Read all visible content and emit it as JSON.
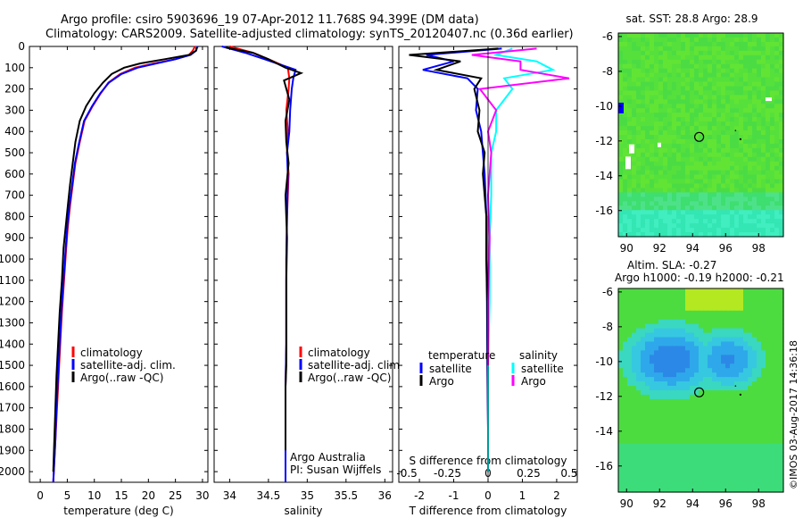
{
  "header": {
    "line1": "Argo profile: csiro 5903696_19 07-Apr-2012 11.768S 94.399E (DM data)",
    "line2": "Climatology: CARS2009. Satellite-adjusted climatology: synTS_20120407.nc (0.36d earlier)"
  },
  "colors": {
    "climatology": "#ff0000",
    "satellite": "#0000ff",
    "argo": "#000000",
    "sal_satellite": "#00ffff",
    "sal_argo": "#ff00ff"
  },
  "chart_data": [
    {
      "type": "line",
      "name": "temperature-profile",
      "xlabel": "temperature (deg C)",
      "ylabel": "",
      "xlim": [
        -2,
        31
      ],
      "ylim": [
        0,
        2050
      ],
      "xticks": [
        "0",
        "5",
        "10",
        "15",
        "20",
        "25",
        "30"
      ],
      "xtick_values": [
        0,
        5,
        10,
        15,
        20,
        25,
        30
      ],
      "yticks": [
        "0",
        "100",
        "200",
        "300",
        "400",
        "500",
        "600",
        "700",
        "800",
        "900",
        "1000",
        "1100",
        "1200",
        "1300",
        "1400",
        "1500",
        "1600",
        "1700",
        "1800",
        "1900",
        "2000"
      ],
      "legend": [
        "climatology",
        "satellite-adj. clim.",
        "Argo(..raw -QC)"
      ],
      "series": [
        {
          "name": "climatology",
          "x": [
            28.6,
            28.2,
            27.5,
            25,
            21,
            17.5,
            14.8,
            12.6,
            11.2,
            9.7,
            8.2,
            7.3,
            6.5,
            6.0,
            5.5,
            5.1,
            4.8,
            4.4,
            4.0,
            3.7,
            3.4,
            3.1,
            2.8,
            2.6,
            2.4
          ],
          "depth": [
            0,
            20,
            40,
            60,
            80,
            100,
            130,
            170,
            220,
            280,
            350,
            450,
            550,
            650,
            750,
            850,
            950,
            1100,
            1250,
            1400,
            1550,
            1700,
            1850,
            1950,
            2050
          ]
        },
        {
          "name": "satellite",
          "x": [
            29.1,
            28.8,
            27.8,
            25,
            21.5,
            18,
            15,
            12.7,
            11.1,
            9.6,
            8.1,
            7.2,
            6.4,
            5.9,
            5.4,
            5.0,
            4.7,
            4.3,
            3.9,
            3.6,
            3.3,
            3.0,
            2.8,
            2.6,
            2.4
          ],
          "depth": [
            0,
            20,
            40,
            60,
            80,
            100,
            130,
            170,
            220,
            280,
            350,
            450,
            550,
            650,
            750,
            850,
            950,
            1100,
            1250,
            1400,
            1550,
            1700,
            1850,
            1950,
            2050
          ]
        },
        {
          "name": "Argo",
          "x": [
            28.9,
            28.8,
            27.5,
            23,
            18.5,
            15.5,
            13.2,
            11.6,
            10.0,
            8.5,
            7.3,
            6.5,
            6.0,
            5.5,
            5.1,
            4.7,
            4.3,
            4.0,
            3.6,
            3.3,
            3.0,
            2.8,
            2.6,
            2.4
          ],
          "depth": [
            5,
            20,
            40,
            60,
            80,
            100,
            130,
            170,
            220,
            280,
            350,
            450,
            550,
            650,
            750,
            850,
            950,
            1100,
            1250,
            1400,
            1550,
            1700,
            1850,
            2000
          ]
        }
      ]
    },
    {
      "type": "line",
      "name": "salinity-profile",
      "xlabel": "salinity",
      "xlim": [
        33.8,
        36.1
      ],
      "ylim": [
        0,
        2050
      ],
      "xticks": [
        "34",
        "34.5",
        "35",
        "35.5",
        "36"
      ],
      "xtick_values": [
        34,
        34.5,
        35,
        35.5,
        36
      ],
      "legend": [
        "climatology",
        "satellite-adj. clim.",
        "Argo(..raw -QC)"
      ],
      "credit": [
        "Argo Australia",
        "PI: Susan Wijffels"
      ],
      "series": [
        {
          "name": "climatology",
          "x": [
            34.0,
            34.3,
            34.5,
            34.75,
            34.77,
            34.76,
            34.73,
            34.75,
            34.74,
            34.76,
            34.74,
            34.73,
            34.73,
            34.73,
            34.72,
            34.72,
            34.72,
            34.72,
            34.72,
            34.72
          ],
          "depth": [
            0,
            30,
            60,
            100,
            150,
            200,
            300,
            400,
            500,
            600,
            800,
            1000,
            1200,
            1400,
            1600,
            1700,
            1800,
            1900,
            2000,
            2050
          ]
        },
        {
          "name": "satellite",
          "x": [
            33.9,
            34.2,
            34.45,
            34.85,
            34.82,
            34.8,
            34.78,
            34.77,
            34.74,
            34.75,
            34.74,
            34.73,
            34.73,
            34.73,
            34.72,
            34.72,
            34.72,
            34.72,
            34.72,
            34.72
          ],
          "depth": [
            0,
            30,
            60,
            110,
            150,
            200,
            300,
            400,
            500,
            600,
            800,
            1000,
            1200,
            1400,
            1600,
            1700,
            1800,
            1900,
            2000,
            2050
          ]
        },
        {
          "name": "Argo",
          "x": [
            33.95,
            34.3,
            34.5,
            34.72,
            34.92,
            34.7,
            34.77,
            34.72,
            34.73,
            34.76,
            34.72,
            34.74,
            34.73,
            34.73,
            34.73,
            34.72,
            34.72,
            34.72,
            34.72
          ],
          "depth": [
            5,
            30,
            60,
            100,
            125,
            160,
            250,
            350,
            450,
            550,
            700,
            900,
            1100,
            1300,
            1500,
            1600,
            1700,
            1800,
            1900
          ]
        }
      ]
    },
    {
      "type": "line",
      "name": "difference-from-climatology",
      "xlabel": "T difference from climatology",
      "x2label": "S difference from climatology",
      "xlim": [
        -2.6,
        2.6
      ],
      "ylim": [
        0,
        2050
      ],
      "xticks": [
        "-2",
        "-1",
        "0",
        "1",
        "2"
      ],
      "xtick_values": [
        -2,
        -1,
        0,
        1,
        2
      ],
      "x2ticks": [
        "-0.5",
        "-0.25",
        "0",
        "0.25",
        "0.5"
      ],
      "legend_headers": [
        "temperature",
        "salinity"
      ],
      "legend": [
        "satellite",
        "Argo",
        "satellite",
        "Argo"
      ],
      "series": [
        {
          "name": "T satellite",
          "x": [
            0.4,
            -1.8,
            -1.0,
            -1.9,
            -0.6,
            -0.3,
            -0.35,
            -0.2,
            -0.15,
            -0.1,
            -0.05,
            -0.05,
            -0.03,
            -0.02,
            0.0,
            0.0
          ],
          "depth": [
            10,
            40,
            70,
            110,
            150,
            200,
            300,
            400,
            500,
            600,
            800,
            1000,
            1200,
            1500,
            1800,
            2000
          ]
        },
        {
          "name": "T Argo",
          "x": [
            0.3,
            -2.3,
            -0.8,
            -1.5,
            -0.2,
            -0.4,
            -0.25,
            -0.3,
            -0.1,
            -0.15,
            -0.05,
            -0.05,
            -0.02,
            -0.01,
            0.0,
            0.0
          ],
          "depth": [
            10,
            40,
            70,
            110,
            150,
            200,
            300,
            400,
            500,
            600,
            800,
            1000,
            1200,
            1500,
            1800,
            2000
          ]
        },
        {
          "name": "S satellite",
          "x": [
            0.15,
            0.05,
            0.3,
            0.4,
            0.1,
            0.15,
            0.05,
            0.05,
            0.02,
            0.02,
            0.01,
            0.01,
            0.0,
            0.0
          ],
          "depth": [
            10,
            40,
            70,
            110,
            150,
            200,
            300,
            400,
            500,
            700,
            900,
            1200,
            1500,
            2000
          ]
        },
        {
          "name": "S Argo",
          "x": [
            0.3,
            -0.1,
            0.2,
            0.2,
            0.5,
            -0.05,
            0.05,
            0.0,
            0.02,
            0.0,
            0.01,
            0.0,
            0.0
          ],
          "depth": [
            10,
            40,
            70,
            110,
            150,
            200,
            300,
            400,
            500,
            700,
            900,
            1200,
            1500
          ]
        }
      ]
    },
    {
      "type": "heatmap",
      "name": "sst-map",
      "title": "sat. SST: 28.8 Argo: 28.9",
      "xlim": [
        89.5,
        99.5
      ],
      "ylim": [
        -17.5,
        -5.8
      ],
      "xticks": [
        "90",
        "92",
        "94",
        "96",
        "98"
      ],
      "xtick_values": [
        90,
        92,
        94,
        96,
        98
      ],
      "yticks": [
        "-6",
        "-8",
        "-10",
        "-12",
        "-14",
        "-16"
      ],
      "ytick_values": [
        -6,
        -8,
        -10,
        -12,
        -14,
        -16
      ],
      "profile_lon": 94.399,
      "profile_lat": -11.768
    },
    {
      "type": "heatmap",
      "name": "sla-map",
      "title_lines": [
        "Altim. SLA: -0.27",
        "Argo h1000: -0.19 h2000: -0.21"
      ],
      "xlim": [
        89.5,
        99.5
      ],
      "ylim": [
        -17.5,
        -5.8
      ],
      "xticks": [
        "90",
        "92",
        "94",
        "96",
        "98"
      ],
      "xtick_values": [
        90,
        92,
        94,
        96,
        98
      ],
      "yticks": [
        "-6",
        "-8",
        "-10",
        "-12",
        "-14",
        "-16"
      ],
      "ytick_values": [
        -6,
        -8,
        -10,
        -12,
        -14,
        -16
      ],
      "profile_lon": 94.399,
      "profile_lat": -11.768
    }
  ],
  "footer": {
    "watermark": "©IMOS 03-Aug-2017 14:36:18"
  }
}
